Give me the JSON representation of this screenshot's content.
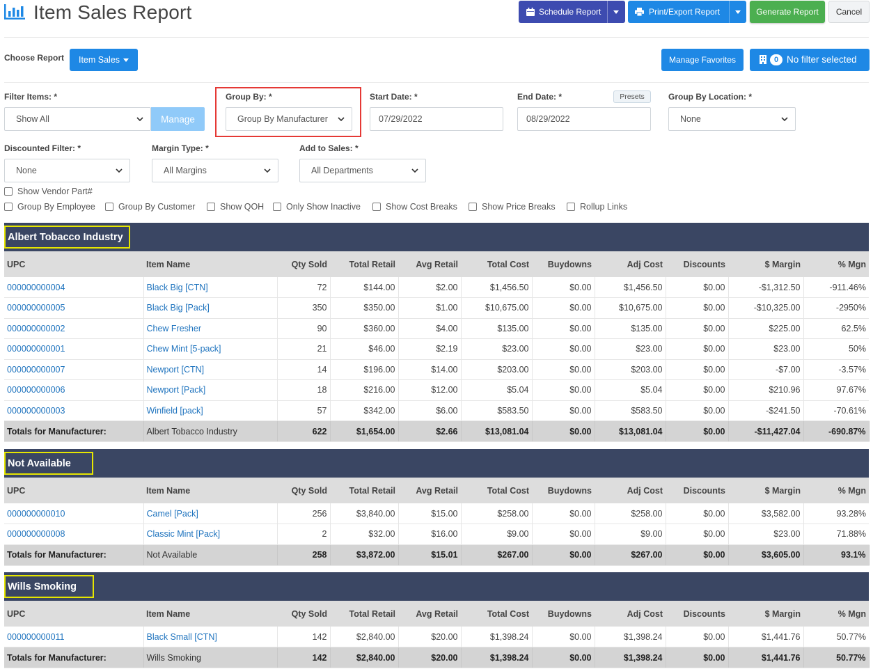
{
  "header": {
    "title": "Item Sales Report",
    "schedule_label": "Schedule Report",
    "print_label": "Print/Export Report",
    "generate_label": "Generate Report",
    "cancel_label": "Cancel"
  },
  "toolbar": {
    "choose_report_label": "Choose Report",
    "item_sales_label": "Item Sales",
    "manage_favorites_label": "Manage Favorites",
    "filter_count": "0",
    "no_filter_label": "No filter selected"
  },
  "filters": {
    "filter_items_label": "Filter Items: *",
    "filter_items_value": "Show All",
    "manage_label": "Manage",
    "group_by_label": "Group By: *",
    "group_by_value": "Group By Manufacturer",
    "start_date_label": "Start Date: *",
    "start_date_value": "07/29/2022",
    "end_date_label": "End Date: *",
    "end_date_value": "08/29/2022",
    "presets_label": "Presets",
    "group_location_label": "Group By Location: *",
    "group_location_value": "None",
    "discounted_label": "Discounted Filter: *",
    "discounted_value": "None",
    "margin_type_label": "Margin Type: *",
    "margin_type_value": "All Margins",
    "add_to_sales_label": "Add to Sales: *",
    "add_to_sales_value": "All Departments"
  },
  "checkboxes": {
    "vendor_part": "Show Vendor Part#",
    "group_employee": "Group By Employee",
    "group_customer": "Group By Customer",
    "show_qoh": "Show QOH",
    "only_inactive": "Only Show Inactive",
    "cost_breaks": "Show Cost Breaks",
    "price_breaks": "Show Price Breaks",
    "rollup_links": "Rollup Links"
  },
  "columns": {
    "upc": "UPC",
    "item_name": "Item Name",
    "qty_sold": "Qty Sold",
    "total_retail": "Total Retail",
    "avg_retail": "Avg Retail",
    "total_cost": "Total Cost",
    "buydowns": "Buydowns",
    "adj_cost": "Adj Cost",
    "discounts": "Discounts",
    "margin": "$ Margin",
    "pct_margin": "% Mgn"
  },
  "totals_label": "Totals for Manufacturer:",
  "groups": [
    {
      "name": "Albert Tobacco Industry",
      "rows": [
        {
          "upc": "000000000004",
          "item": "Black Big [CTN]",
          "qty": "72",
          "total_retail": "$144.00",
          "avg_retail": "$2.00",
          "total_cost": "$1,456.50",
          "buydowns": "$0.00",
          "adj_cost": "$1,456.50",
          "discounts": "$0.00",
          "margin": "-$1,312.50",
          "pct": "-911.46%"
        },
        {
          "upc": "000000000005",
          "item": "Black Big [Pack]",
          "qty": "350",
          "total_retail": "$350.00",
          "avg_retail": "$1.00",
          "total_cost": "$10,675.00",
          "buydowns": "$0.00",
          "adj_cost": "$10,675.00",
          "discounts": "$0.00",
          "margin": "-$10,325.00",
          "pct": "-2950%"
        },
        {
          "upc": "000000000002",
          "item": "Chew Fresher",
          "qty": "90",
          "total_retail": "$360.00",
          "avg_retail": "$4.00",
          "total_cost": "$135.00",
          "buydowns": "$0.00",
          "adj_cost": "$135.00",
          "discounts": "$0.00",
          "margin": "$225.00",
          "pct": "62.5%"
        },
        {
          "upc": "000000000001",
          "item": "Chew Mint [5-pack]",
          "qty": "21",
          "total_retail": "$46.00",
          "avg_retail": "$2.19",
          "total_cost": "$23.00",
          "buydowns": "$0.00",
          "adj_cost": "$23.00",
          "discounts": "$0.00",
          "margin": "$23.00",
          "pct": "50%"
        },
        {
          "upc": "000000000007",
          "item": "Newport [CTN]",
          "qty": "14",
          "total_retail": "$196.00",
          "avg_retail": "$14.00",
          "total_cost": "$203.00",
          "buydowns": "$0.00",
          "adj_cost": "$203.00",
          "discounts": "$0.00",
          "margin": "-$7.00",
          "pct": "-3.57%"
        },
        {
          "upc": "000000000006",
          "item": "Newport [Pack]",
          "qty": "18",
          "total_retail": "$216.00",
          "avg_retail": "$12.00",
          "total_cost": "$5.04",
          "buydowns": "$0.00",
          "adj_cost": "$5.04",
          "discounts": "$0.00",
          "margin": "$210.96",
          "pct": "97.67%"
        },
        {
          "upc": "000000000003",
          "item": "Winfield [pack]",
          "qty": "57",
          "total_retail": "$342.00",
          "avg_retail": "$6.00",
          "total_cost": "$583.50",
          "buydowns": "$0.00",
          "adj_cost": "$583.50",
          "discounts": "$0.00",
          "margin": "-$241.50",
          "pct": "-70.61%"
        }
      ],
      "totals": {
        "name": "Albert Tobacco Industry",
        "qty": "622",
        "total_retail": "$1,654.00",
        "avg_retail": "$2.66",
        "total_cost": "$13,081.04",
        "buydowns": "$0.00",
        "adj_cost": "$13,081.04",
        "discounts": "$0.00",
        "margin": "-$11,427.04",
        "pct": "-690.87%"
      }
    },
    {
      "name": "Not Available",
      "rows": [
        {
          "upc": "000000000010",
          "item": "Camel [Pack]",
          "qty": "256",
          "total_retail": "$3,840.00",
          "avg_retail": "$15.00",
          "total_cost": "$258.00",
          "buydowns": "$0.00",
          "adj_cost": "$258.00",
          "discounts": "$0.00",
          "margin": "$3,582.00",
          "pct": "93.28%"
        },
        {
          "upc": "000000000008",
          "item": "Classic Mint [Pack]",
          "qty": "2",
          "total_retail": "$32.00",
          "avg_retail": "$16.00",
          "total_cost": "$9.00",
          "buydowns": "$0.00",
          "adj_cost": "$9.00",
          "discounts": "$0.00",
          "margin": "$23.00",
          "pct": "71.88%"
        }
      ],
      "totals": {
        "name": "Not Available",
        "qty": "258",
        "total_retail": "$3,872.00",
        "avg_retail": "$15.01",
        "total_cost": "$267.00",
        "buydowns": "$0.00",
        "adj_cost": "$267.00",
        "discounts": "$0.00",
        "margin": "$3,605.00",
        "pct": "93.1%"
      }
    },
    {
      "name": "Wills Smoking",
      "rows": [
        {
          "upc": "000000000011",
          "item": "Black Small [CTN]",
          "qty": "142",
          "total_retail": "$2,840.00",
          "avg_retail": "$20.00",
          "total_cost": "$1,398.24",
          "buydowns": "$0.00",
          "adj_cost": "$1,398.24",
          "discounts": "$0.00",
          "margin": "$1,441.76",
          "pct": "50.77%"
        }
      ],
      "totals": {
        "name": "Wills Smoking",
        "qty": "142",
        "total_retail": "$2,840.00",
        "avg_retail": "$20.00",
        "total_cost": "$1,398.24",
        "buydowns": "$0.00",
        "adj_cost": "$1,398.24",
        "discounts": "$0.00",
        "margin": "$1,441.76",
        "pct": "50.77%"
      }
    }
  ],
  "icons": {
    "title": "bar-chart-icon",
    "schedule": "calendar-icon",
    "print": "printer-icon",
    "filter": "building-icon"
  }
}
